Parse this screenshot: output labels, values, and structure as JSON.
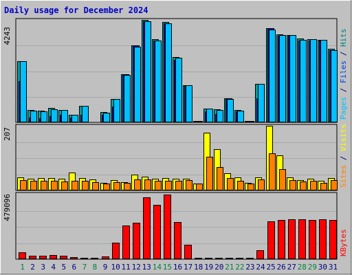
{
  "chart_data": {
    "type": "bar",
    "title": "Daily usage for December 2024",
    "categories": [
      "1",
      "2",
      "3",
      "4",
      "5",
      "6",
      "7",
      "8",
      "9",
      "10",
      "11",
      "12",
      "13",
      "14",
      "15",
      "16",
      "17",
      "18",
      "19",
      "20",
      "21",
      "22",
      "23",
      "24",
      "25",
      "26",
      "27",
      "28",
      "29",
      "30",
      "31"
    ],
    "weekend_days": [
      "1",
      "7",
      "8",
      "14",
      "15",
      "21",
      "22",
      "28",
      "29"
    ],
    "panels": [
      {
        "max_label": "4243",
        "max_value": 4243,
        "right_labels": [
          {
            "text": "Pages",
            "color": "#00c0ff"
          },
          {
            "text": " / ",
            "color": "#000080"
          },
          {
            "text": "Files",
            "color": "#0040e0"
          },
          {
            "text": " / ",
            "color": "#000080"
          },
          {
            "text": "Hits",
            "color": "#008080"
          }
        ],
        "series": [
          {
            "name": "Hits",
            "color": "#00a0a0",
            "values": [
              2540,
              500,
              490,
              590,
              510,
              310,
              680,
              40,
              440,
              980,
              2000,
              3180,
              4243,
              3450,
              4150,
              2700,
              1550,
              60,
              570,
              550,
              1000,
              500,
              60,
              1600,
              3900,
              3650,
              3630,
              3460,
              3450,
              3420,
              3050
            ]
          },
          {
            "name": "Files",
            "color": "#0000c0",
            "values": [
              1700,
              200,
              180,
              250,
              300,
              200,
              300,
              20,
              300,
              650,
              2000,
              3200,
              4200,
              3400,
              4100,
              2600,
              1500,
              40,
              450,
              350,
              1000,
              450,
              40,
              1000,
              3900,
              3600,
              3600,
              3400,
              3400,
              3400,
              3000
            ]
          },
          {
            "name": "Pages",
            "color": "#00c0ff",
            "values": [
              2540,
              470,
              460,
              540,
              500,
              310,
              680,
              40,
              400,
              960,
              1960,
              3120,
              4180,
              3400,
              4100,
              2680,
              1530,
              60,
              560,
              510,
              980,
              470,
              50,
              1590,
              3850,
              3630,
              3620,
              3430,
              3440,
              3410,
              3000
            ]
          }
        ]
      },
      {
        "max_label": "207",
        "max_value": 207,
        "right_labels": [
          {
            "text": "Sites",
            "color": "#ff8000"
          },
          {
            "text": " / ",
            "color": "#000080"
          },
          {
            "text": "Visits",
            "color": "#ffff00"
          }
        ],
        "series": [
          {
            "name": "Visits",
            "color": "#ffff00",
            "values": [
              42,
              38,
              40,
              40,
              38,
              57,
              40,
              35,
              25,
              32,
              27,
              50,
              43,
              38,
              40,
              38,
              38,
              22,
              185,
              132,
              55,
              42,
              25,
              42,
              207,
              112,
              42,
              32,
              38,
              30,
              40
            ]
          },
          {
            "name": "Sites",
            "color": "#ff8000",
            "values": [
              32,
              30,
              30,
              30,
              28,
              30,
              30,
              27,
              22,
              27,
              25,
              35,
              35,
              30,
              30,
              30,
              32,
              22,
              108,
              75,
              40,
              30,
              22,
              35,
              118,
              68,
              32,
              28,
              30,
              25,
              32
            ]
          }
        ]
      },
      {
        "max_label": "479096",
        "max_value": 479096,
        "right_labels": [
          {
            "text": "KBytes",
            "color": "#ff0000"
          }
        ],
        "series": [
          {
            "name": "KBytes",
            "color": "#ff0000",
            "values": [
              52000,
              28000,
              25000,
              32000,
              25000,
              15000,
              12000,
              10000,
              18000,
              120000,
              250000,
              270000,
              457000,
              405000,
              479096,
              275000,
              105000,
              8000,
              12000,
              10000,
              12000,
              12000,
              10000,
              65000,
              278000,
              292000,
              295000,
              295000,
              292000,
              295000,
              290000
            ]
          }
        ]
      }
    ]
  }
}
